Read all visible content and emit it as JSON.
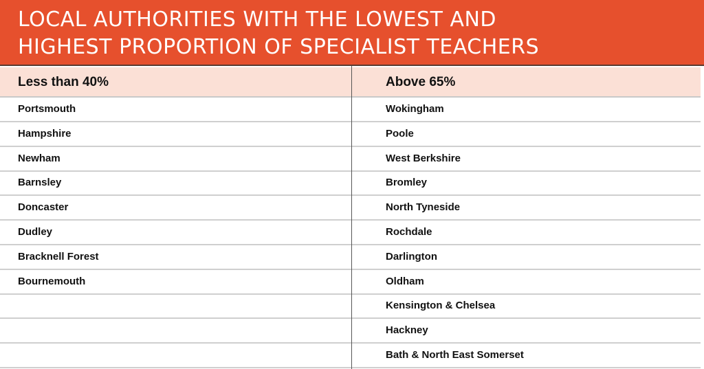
{
  "title": {
    "line1": "LOCAL AUTHORITIES WITH THE LOWEST AND",
    "line2": "HIGHEST PROPORTION OF SPECIALIST TEACHERS"
  },
  "columns": [
    {
      "header": "Less than 40%",
      "items": [
        "Portsmouth",
        "Hampshire",
        "Newham",
        "Barnsley",
        "Doncaster",
        "Dudley",
        "Bracknell Forest",
        "Bournemouth",
        "",
        "",
        ""
      ]
    },
    {
      "header": "Above 65%",
      "items": [
        "Wokingham",
        "Poole",
        "West Berkshire",
        "Bromley",
        "North Tyneside",
        "Rochdale",
        "Darlington",
        "Oldham",
        "Kensington & Chelsea",
        "Hackney",
        "Bath & North East Somerset"
      ]
    }
  ],
  "colors": {
    "banner": "#e6502d",
    "header_bg": "#fbe0d6"
  }
}
